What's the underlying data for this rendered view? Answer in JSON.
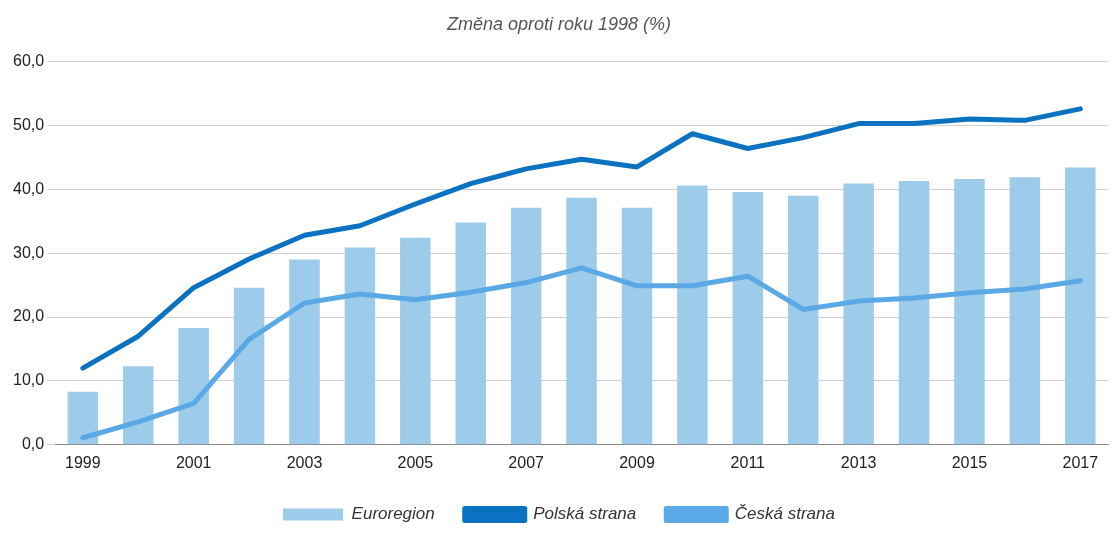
{
  "chart_data": {
    "type": "bar",
    "title": "Změna oproti roku 1998 (%)",
    "categories": [
      "1999",
      null,
      "2001",
      null,
      "2003",
      null,
      "2005",
      null,
      "2007",
      null,
      "2009",
      null,
      "2011",
      null,
      "2013",
      null,
      "2015",
      null,
      "2017"
    ],
    "series": [
      {
        "name": "Euroregion",
        "color": "#9dcbea",
        "values": [
          8.3,
          12.3,
          18.3,
          24.6,
          29.0,
          30.9,
          32.4,
          34.8,
          37.1,
          38.7,
          37.1,
          40.6,
          39.6,
          39.0,
          40.9,
          41.3,
          41.6,
          41.9,
          43.4
        ]
      },
      {
        "name": "Polská strana",
        "type": "line",
        "color": "#0a72c0",
        "values": [
          12.0,
          17.0,
          24.6,
          29.1,
          32.8,
          34.3,
          37.7,
          40.9,
          43.2,
          44.7,
          43.5,
          48.7,
          46.4,
          48.1,
          50.3,
          50.3,
          51.0,
          50.8,
          52.6
        ]
      },
      {
        "name": "Česká strana",
        "type": "line",
        "color": "#5aa8e6",
        "values": [
          1.1,
          3.6,
          6.5,
          16.5,
          22.2,
          23.6,
          22.7,
          23.9,
          25.4,
          27.7,
          24.9,
          24.9,
          26.4,
          21.2,
          22.5,
          23.0,
          23.8,
          24.4,
          25.7
        ]
      }
    ],
    "ylim": [
      0,
      60
    ],
    "yticks": [
      {
        "value": 0,
        "label": "0,0"
      },
      {
        "value": 10,
        "label": "10,0"
      },
      {
        "value": 20,
        "label": "20,0"
      },
      {
        "value": 30,
        "label": "30,0"
      },
      {
        "value": 40,
        "label": "40,0"
      },
      {
        "value": 50,
        "label": "50,0"
      },
      {
        "value": 60,
        "label": "60,0"
      }
    ],
    "grid": "y",
    "legend": "bottom",
    "marker": "none",
    "line_style": "solid"
  }
}
